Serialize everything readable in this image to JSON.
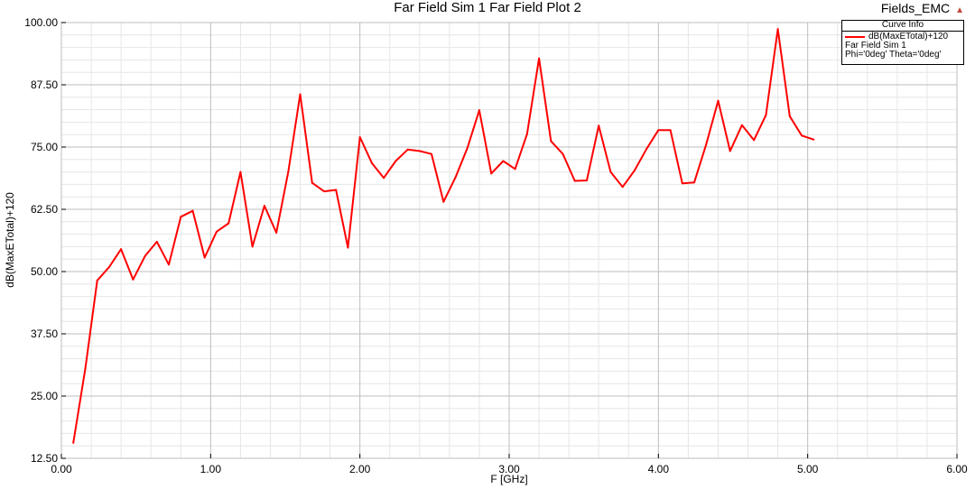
{
  "header": {
    "title": "Far Field Sim 1 Far Field Plot 2",
    "brand": "Fields_EMC",
    "brand_icon": "triangle-up-icon"
  },
  "legend": {
    "header": "Curve Info",
    "series_label": "dB(MaxETotal)+120",
    "line1": "Far Field Sim 1",
    "line2": "Phi='0deg' Theta='0deg'"
  },
  "chart_data": {
    "type": "line",
    "title": "Far Field Sim 1 Far Field Plot 2",
    "xlabel": "F [GHz]",
    "ylabel": "dB(MaxETotal)+120",
    "xlim": [
      0,
      6
    ],
    "ylim": [
      12.5,
      100
    ],
    "xticks": [
      "0.00",
      "1.00",
      "2.00",
      "3.00",
      "4.00",
      "5.00",
      "6.00"
    ],
    "yticks": [
      "12.50",
      "25.00",
      "37.50",
      "50.00",
      "62.50",
      "75.00",
      "87.50",
      "100.00"
    ],
    "grid": true,
    "legend_placement": "top-right",
    "series": [
      {
        "name": "dB(MaxETotal)+120",
        "color": "#ff0000",
        "x": [
          0.08,
          0.16,
          0.24,
          0.32,
          0.4,
          0.48,
          0.56,
          0.64,
          0.72,
          0.8,
          0.88,
          0.96,
          1.04,
          1.12,
          1.2,
          1.28,
          1.36,
          1.44,
          1.52,
          1.6,
          1.68,
          1.76,
          1.84,
          1.92,
          2.0,
          2.08,
          2.16,
          2.24,
          2.32,
          2.4,
          2.48,
          2.56,
          2.64,
          2.72,
          2.8,
          2.88,
          2.96,
          3.04,
          3.12,
          3.2,
          3.28,
          3.36,
          3.44,
          3.52,
          3.6,
          3.68,
          3.76,
          3.84,
          3.92,
          4.0,
          4.08,
          4.16,
          4.24,
          4.32,
          4.4,
          4.48,
          4.56,
          4.64,
          4.72,
          4.8,
          4.88,
          4.96,
          5.04
        ],
        "y": [
          15.6,
          30.5,
          48.2,
          50.9,
          54.5,
          48.4,
          53.1,
          56.0,
          51.4,
          61.0,
          62.2,
          52.8,
          58.0,
          59.7,
          70.0,
          55.0,
          63.2,
          57.8,
          70.0,
          85.6,
          67.8,
          66.1,
          66.4,
          54.8,
          77.0,
          71.8,
          68.8,
          72.2,
          74.5,
          74.2,
          73.6,
          64.0,
          68.9,
          74.8,
          82.4,
          69.7,
          72.2,
          70.6,
          77.6,
          92.8,
          76.2,
          73.6,
          68.2,
          68.3,
          79.3,
          70.0,
          67.0,
          70.3,
          74.6,
          78.4,
          78.4,
          67.7,
          67.9,
          75.5,
          84.3,
          74.2,
          79.4,
          76.4,
          81.4,
          98.7,
          81.2,
          77.3,
          76.5
        ]
      }
    ]
  }
}
